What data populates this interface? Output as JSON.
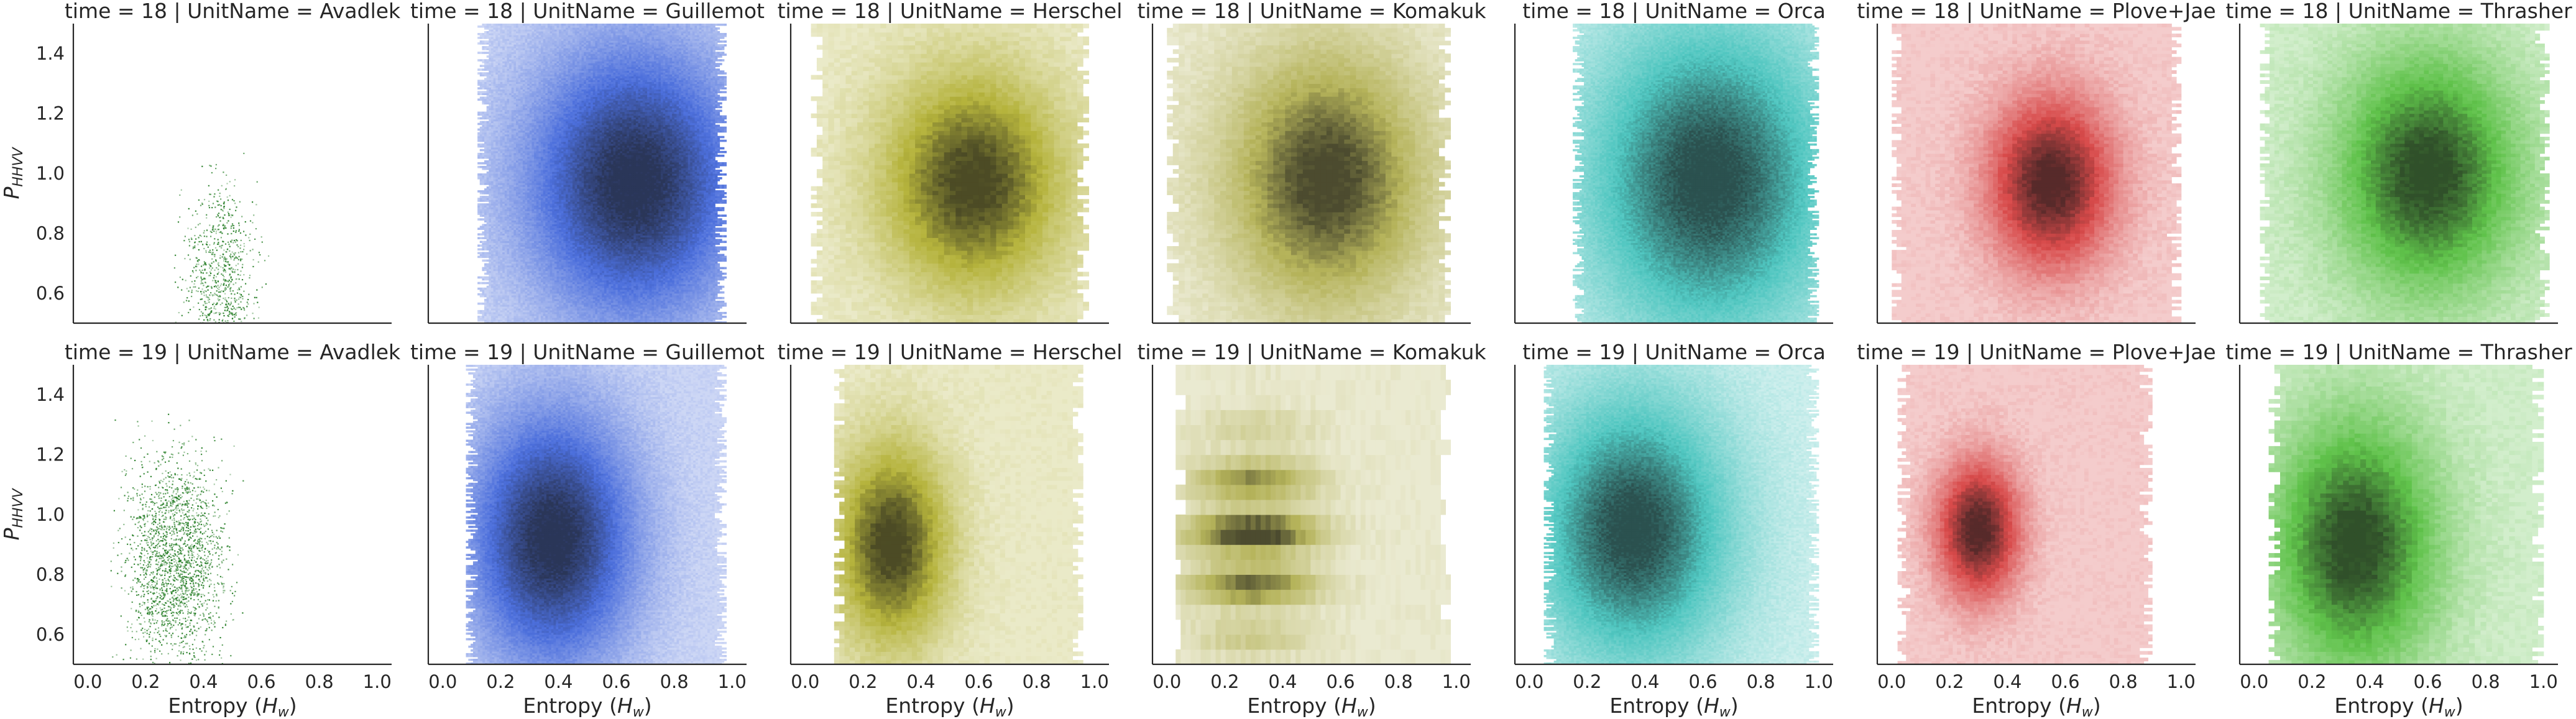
{
  "chart_data": {
    "type": "heatmap",
    "layout": "facet-grid",
    "row_variable": "time",
    "col_variable": "UnitName",
    "rows": [
      "18",
      "19"
    ],
    "columns": [
      "Avadlek",
      "Guillemot",
      "Herschel",
      "Komakuk",
      "Orca",
      "Plove+Jae",
      "Thrasher"
    ],
    "xlabel": "Entropy (H_w)",
    "xlabel_main": "Entropy (",
    "xlabel_var": "H",
    "xlabel_sub": "w",
    "xlabel_end": ")",
    "ylabel": "P_HHVV",
    "ylabel_var": "P",
    "ylabel_sub": "HHVV",
    "xlim": [
      -0.05,
      1.05
    ],
    "ylim": [
      0.5,
      1.5
    ],
    "x_ticks": [
      "0.0",
      "0.2",
      "0.4",
      "0.6",
      "0.8",
      "1.0"
    ],
    "y_ticks": [
      "0.6",
      "0.8",
      "1.0",
      "1.2",
      "1.4"
    ],
    "grid": false,
    "panels": [
      {
        "row": "18",
        "unit": "Avadlek",
        "title": "time = 18 | UnitName = Avadlek",
        "color": "#2ca02c",
        "style": "scatter",
        "center": [
          0.46,
          0.64
        ],
        "spread": [
          0.1,
          0.2
        ],
        "x_range": [
          0.22,
          0.7
        ],
        "y_range": [
          0.5,
          1.5
        ]
      },
      {
        "row": "18",
        "unit": "Guillemot",
        "title": "time = 18 | UnitName = Guillemot",
        "color": "#4c6fdc",
        "style": "fine",
        "center": [
          0.66,
          0.97
        ],
        "spread": [
          0.26,
          0.32
        ],
        "x_range": [
          0.12,
          0.98
        ],
        "y_range": [
          0.5,
          1.5
        ]
      },
      {
        "row": "18",
        "unit": "Herschel",
        "title": "time = 18 | UnitName = Herschel",
        "color": "#b5b33c",
        "style": "coarse",
        "center": [
          0.58,
          0.97
        ],
        "spread": [
          0.22,
          0.26
        ],
        "x_range": [
          0.02,
          0.98
        ],
        "y_range": [
          0.5,
          1.5
        ]
      },
      {
        "row": "18",
        "unit": "Komakuk",
        "title": "time = 18 | UnitName = Komakuk",
        "color": "#b5b35a",
        "style": "coarse",
        "center": [
          0.55,
          0.98
        ],
        "spread": [
          0.24,
          0.3
        ],
        "x_range": [
          0.0,
          0.98
        ],
        "y_range": [
          0.5,
          1.5
        ]
      },
      {
        "row": "18",
        "unit": "Orca",
        "title": "time = 18 | UnitName = Orca",
        "color": "#4fc6c0",
        "style": "fine",
        "center": [
          0.62,
          0.98
        ],
        "spread": [
          0.3,
          0.38
        ],
        "x_range": [
          0.15,
          1.0
        ],
        "y_range": [
          0.5,
          1.5
        ]
      },
      {
        "row": "18",
        "unit": "Plove+Jae",
        "title": "time = 18 | UnitName = Plove+Jae",
        "color": "#d84a4a",
        "style": "medium",
        "center": [
          0.55,
          0.97
        ],
        "spread": [
          0.15,
          0.2
        ],
        "x_range": [
          0.0,
          1.0
        ],
        "y_range": [
          0.5,
          1.5
        ]
      },
      {
        "row": "18",
        "unit": "Thrasher",
        "title": "time = 18 | UnitName = Thrasher",
        "color": "#5fc24a",
        "style": "medium",
        "center": [
          0.6,
          1.0
        ],
        "spread": [
          0.22,
          0.28
        ],
        "x_range": [
          0.02,
          1.02
        ],
        "y_range": [
          0.5,
          1.5
        ]
      },
      {
        "row": "19",
        "unit": "Avadlek",
        "title": "time = 19 | UnitName = Avadlek",
        "color": "#2ca02c",
        "style": "scatter",
        "center": [
          0.3,
          0.85
        ],
        "spread": [
          0.14,
          0.22
        ],
        "x_range": [
          0.05,
          0.85
        ],
        "y_range": [
          0.5,
          1.5
        ]
      },
      {
        "row": "19",
        "unit": "Guillemot",
        "title": "time = 19 | UnitName = Guillemot",
        "color": "#4c6fdc",
        "style": "fine",
        "center": [
          0.38,
          0.92
        ],
        "spread": [
          0.2,
          0.3
        ],
        "x_range": [
          0.08,
          0.98
        ],
        "y_range": [
          0.5,
          1.5
        ]
      },
      {
        "row": "19",
        "unit": "Herschel",
        "title": "time = 19 | UnitName = Herschel",
        "color": "#b5b33c",
        "style": "coarse",
        "center": [
          0.3,
          0.9
        ],
        "spread": [
          0.14,
          0.24
        ],
        "x_range": [
          0.1,
          0.96
        ],
        "y_range": [
          0.5,
          1.5
        ]
      },
      {
        "row": "19",
        "unit": "Komakuk",
        "title": "time = 19 | UnitName = Komakuk",
        "color": "#b5b35a",
        "style": "banded",
        "center": [
          0.3,
          0.92
        ],
        "spread": [
          0.16,
          0.22
        ],
        "x_range": [
          0.03,
          0.98
        ],
        "y_range": [
          0.5,
          1.5
        ]
      },
      {
        "row": "19",
        "unit": "Orca",
        "title": "time = 19 | UnitName = Orca",
        "color": "#4fc6c0",
        "style": "fine",
        "center": [
          0.36,
          0.95
        ],
        "spread": [
          0.24,
          0.32
        ],
        "x_range": [
          0.05,
          1.0
        ],
        "y_range": [
          0.5,
          1.5
        ]
      },
      {
        "row": "19",
        "unit": "Plove+Jae",
        "title": "time = 19 | UnitName = Plove+Jae",
        "color": "#d84a4a",
        "style": "medium",
        "center": [
          0.3,
          0.95
        ],
        "spread": [
          0.1,
          0.16
        ],
        "x_range": [
          0.02,
          0.9
        ],
        "y_range": [
          0.5,
          1.5
        ]
      },
      {
        "row": "19",
        "unit": "Thrasher",
        "title": "time = 19 | UnitName = Thrasher",
        "color": "#5fc24a",
        "style": "coarse",
        "center": [
          0.35,
          0.9
        ],
        "spread": [
          0.2,
          0.3
        ],
        "x_range": [
          0.05,
          1.0
        ],
        "y_range": [
          0.5,
          1.5
        ]
      }
    ]
  }
}
